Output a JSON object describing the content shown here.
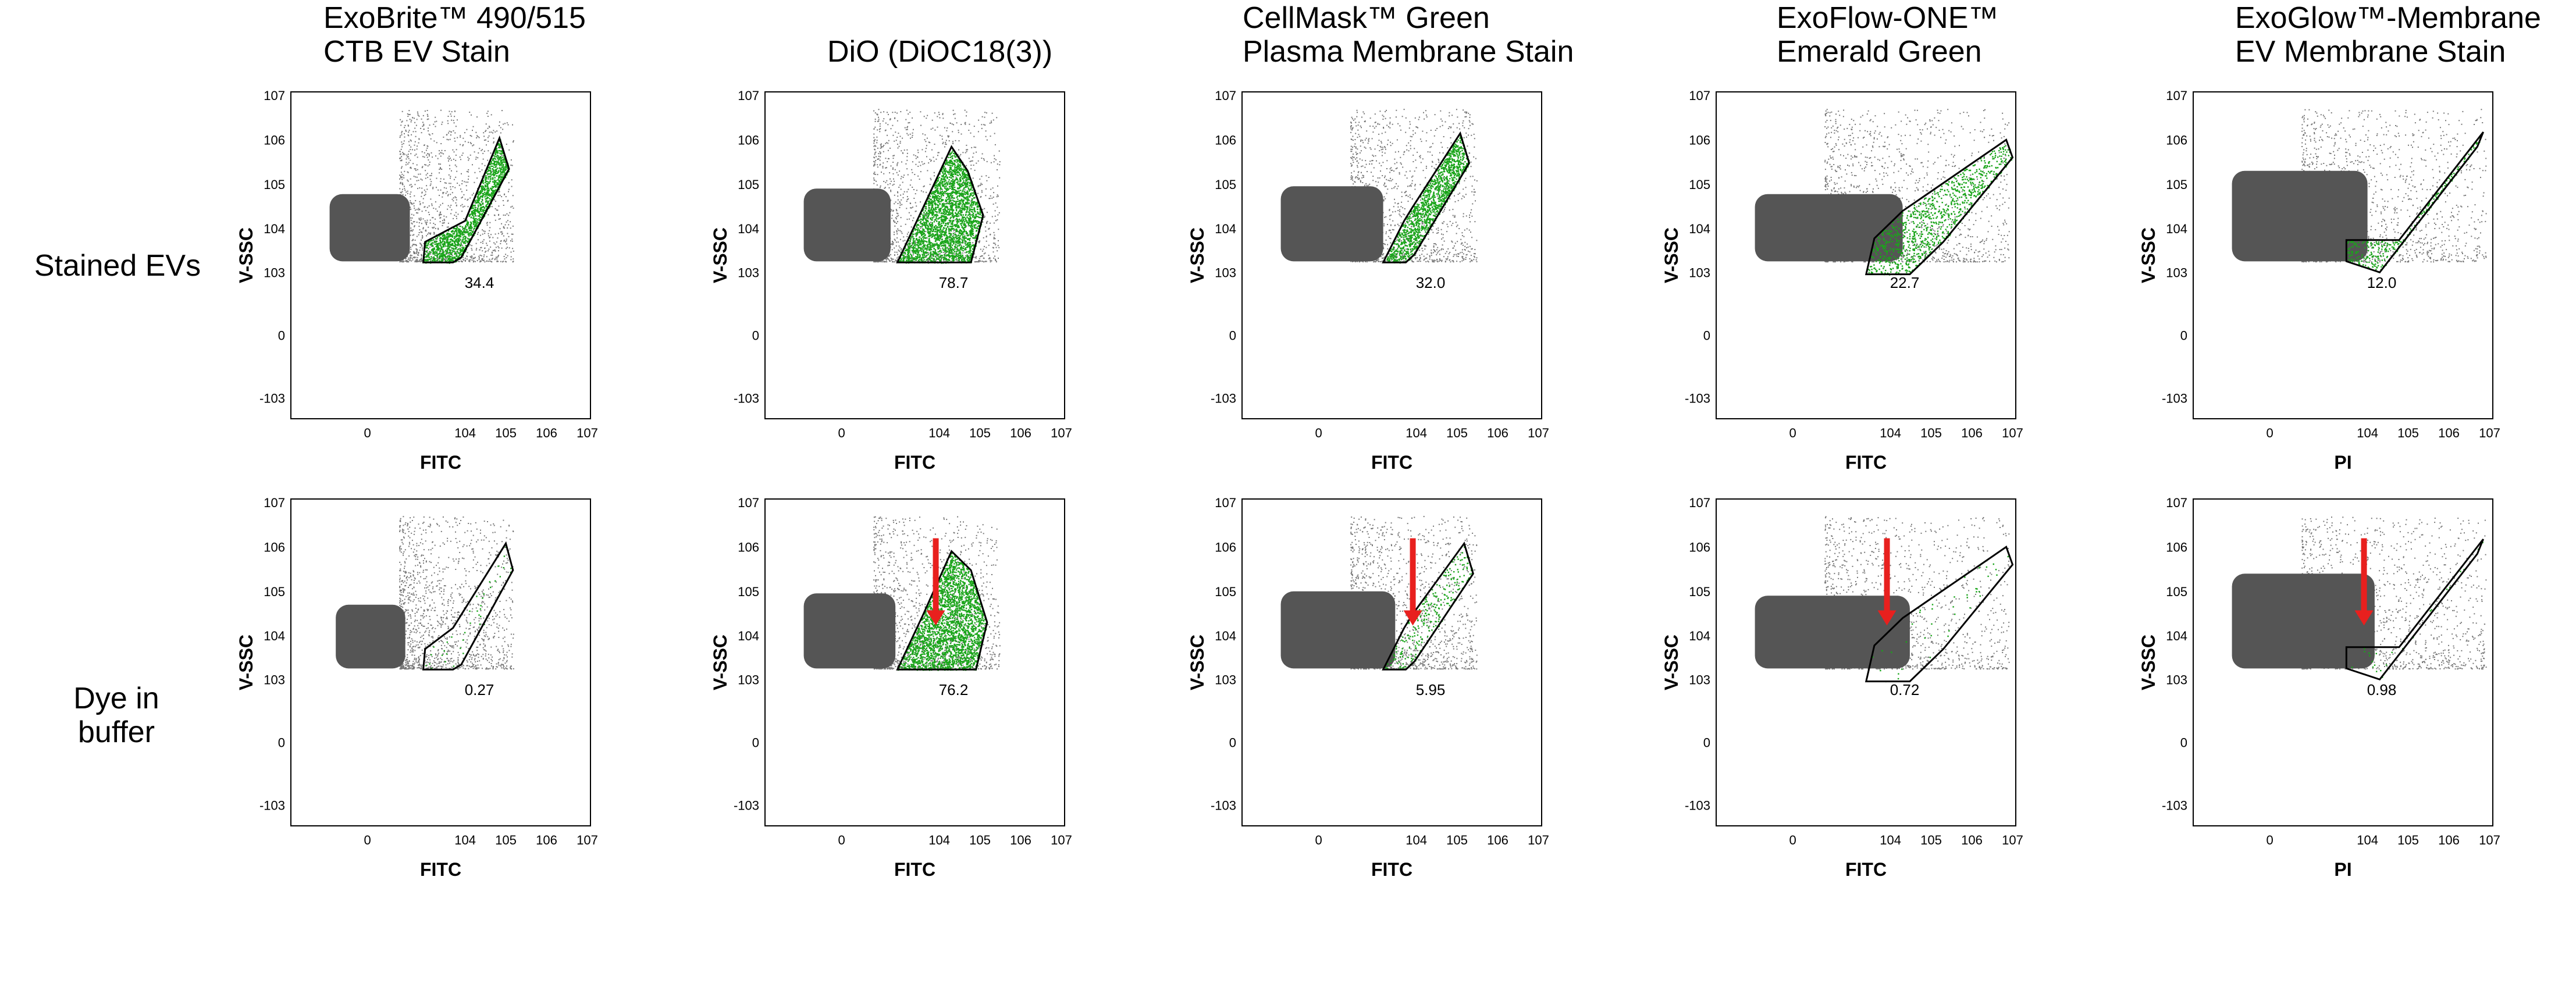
{
  "figure": {
    "row_labels": [
      "Stained EVs",
      "Dye in\nbuffer"
    ],
    "column_titles": [
      "ExoBrite™ 490/515\nCTB EV Stain",
      "DiO (DiOC18(3))",
      "CellMask™ Green\nPlasma Membrane Stain",
      "ExoFlow-ONE™\nEmerald Green",
      "ExoGlow™-Membrane\nEV Membrane Stain"
    ]
  },
  "colors": {
    "population": "#555555",
    "gated": "#1aa51a",
    "gate_outline": "#000000",
    "arrow": "#e8201e",
    "frame": "#000000"
  },
  "chart_data": [
    {
      "type": "scatter",
      "row": "Stained EVs",
      "column": "ExoBrite™ 490/515 CTB EV Stain",
      "xlabel": "FITC",
      "ylabel": "V-SSC",
      "x_scale": "biexponential",
      "y_scale": "biexponential",
      "x_ticks": [
        "0",
        "10^4",
        "10^5",
        "10^6",
        "10^7"
      ],
      "y_ticks": [
        "10^7",
        "10^6",
        "10^5",
        "10^4",
        "10^3",
        "0",
        "-10^3"
      ],
      "gate_percent": "34.4",
      "arrow": false,
      "population": {
        "x_range": [
          -300,
          400
        ],
        "y_range": [
          1800,
          60000
        ],
        "spread_x": [
          200,
          150000
        ],
        "spread_y": [
          1800,
          5000000
        ]
      },
      "gate_polygon_data": [
        [
          900,
          1700
        ],
        [
          5000,
          1700
        ],
        [
          8000,
          2200
        ],
        [
          120000,
          220000
        ],
        [
          70000,
          1100000
        ],
        [
          10000,
          15000
        ],
        [
          1000,
          5000
        ]
      ]
    },
    {
      "type": "scatter",
      "row": "Stained EVs",
      "column": "DiO (DiOC18(3))",
      "xlabel": "FITC",
      "ylabel": "V-SSC",
      "x_scale": "biexponential",
      "y_scale": "biexponential",
      "x_ticks": [
        "0",
        "10^4",
        "10^5",
        "10^6",
        "10^7"
      ],
      "y_ticks": [
        "10^7",
        "10^6",
        "10^5",
        "10^4",
        "10^3",
        "0",
        "-10^3"
      ],
      "gate_percent": "78.7",
      "arrow": false,
      "population": {
        "x_range": [
          -300,
          600
        ],
        "y_range": [
          1800,
          80000
        ],
        "spread_x": [
          200,
          300000
        ],
        "spread_y": [
          1800,
          5000000
        ]
      },
      "gate_polygon_data": [
        [
          900,
          1700
        ],
        [
          60000,
          1700
        ],
        [
          120000,
          20000
        ],
        [
          50000,
          200000
        ],
        [
          20000,
          700000
        ],
        [
          4000,
          30000
        ]
      ]
    },
    {
      "type": "scatter",
      "row": "Stained EVs",
      "column": "CellMask™ Green Plasma Membrane Stain",
      "xlabel": "FITC",
      "ylabel": "V-SSC",
      "x_scale": "biexponential",
      "y_scale": "biexponential",
      "x_ticks": [
        "0",
        "10^4",
        "10^5",
        "10^6",
        "10^7"
      ],
      "y_ticks": [
        "10^7",
        "10^6",
        "10^5",
        "10^4",
        "10^3",
        "0",
        "-10^3"
      ],
      "gate_percent": "32.0",
      "arrow": false,
      "population": {
        "x_range": [
          -300,
          1500
        ],
        "y_range": [
          1800,
          90000
        ],
        "spread_x": [
          200,
          300000
        ],
        "spread_y": [
          1800,
          5000000
        ]
      },
      "gate_polygon_data": [
        [
          1500,
          1700
        ],
        [
          5500,
          1700
        ],
        [
          9000,
          2600
        ],
        [
          200000,
          300000
        ],
        [
          120000,
          1400000
        ],
        [
          8000,
          30000
        ],
        [
          5000,
          15000
        ]
      ]
    },
    {
      "type": "scatter",
      "row": "Stained EVs",
      "column": "ExoFlow-ONE™ Emerald Green",
      "xlabel": "FITC",
      "ylabel": "V-SSC",
      "x_scale": "biexponential",
      "y_scale": "biexponential",
      "x_ticks": [
        "0",
        "10^4",
        "10^5",
        "10^6",
        "10^7"
      ],
      "y_ticks": [
        "10^7",
        "10^6",
        "10^5",
        "10^4",
        "10^3",
        "0",
        "-10^3"
      ],
      "gate_percent": "22.7",
      "arrow": false,
      "population": {
        "x_range": [
          -300,
          20000
        ],
        "y_range": [
          1800,
          60000
        ],
        "spread_x": [
          200,
          8000000
        ],
        "spread_y": [
          1800,
          5000000
        ]
      },
      "gate_polygon_data": [
        [
          2500,
          900
        ],
        [
          30000,
          900
        ],
        [
          200000,
          5000
        ],
        [
          10000000,
          400000
        ],
        [
          7000000,
          1000000
        ],
        [
          20000,
          25000
        ],
        [
          4000,
          6000
        ]
      ]
    },
    {
      "type": "scatter",
      "row": "Stained EVs",
      "column": "ExoGlow™-Membrane EV Membrane Stain",
      "xlabel": "PI",
      "ylabel": "V-SSC",
      "x_scale": "biexponential",
      "y_scale": "biexponential",
      "x_ticks": [
        "0",
        "10^4",
        "10^5",
        "10^6",
        "10^7"
      ],
      "y_ticks": [
        "10^7",
        "10^6",
        "10^5",
        "10^4",
        "10^3",
        "0",
        "-10^3"
      ],
      "gate_percent": "12.0",
      "arrow": false,
      "population": {
        "x_range": [
          -300,
          10000
        ],
        "y_range": [
          1800,
          200000
        ],
        "spread_x": [
          200,
          8000000
        ],
        "spread_y": [
          1800,
          5000000
        ]
      },
      "gate_polygon_data": [
        [
          3000,
          1800
        ],
        [
          3000,
          5500
        ],
        [
          60000,
          5500
        ],
        [
          7000000,
          1500000
        ],
        [
          5000000,
          700000
        ],
        [
          20000,
          1000
        ]
      ]
    },
    {
      "type": "scatter",
      "row": "Dye in buffer",
      "column": "ExoBrite™ 490/515 CTB EV Stain",
      "xlabel": "FITC",
      "ylabel": "V-SSC",
      "x_scale": "biexponential",
      "y_scale": "biexponential",
      "x_ticks": [
        "0",
        "10^4",
        "10^5",
        "10^6",
        "10^7"
      ],
      "y_ticks": [
        "10^7",
        "10^6",
        "10^5",
        "10^4",
        "10^3",
        "0",
        "-10^3"
      ],
      "gate_percent": "0.27",
      "arrow": false,
      "population": {
        "x_range": [
          -200,
          300
        ],
        "y_range": [
          1800,
          50000
        ],
        "spread_x": [
          200,
          150000
        ],
        "spread_y": [
          1800,
          5000000
        ]
      },
      "gate_polygon_data": [
        [
          900,
          1700
        ],
        [
          5000,
          1700
        ],
        [
          8000,
          2200
        ],
        [
          150000,
          300000
        ],
        [
          100000,
          1200000
        ],
        [
          5000,
          15000
        ],
        [
          1000,
          5000
        ]
      ]
    },
    {
      "type": "scatter",
      "row": "Dye in buffer",
      "column": "DiO (DiOC18(3))",
      "xlabel": "FITC",
      "ylabel": "V-SSC",
      "x_scale": "biexponential",
      "y_scale": "biexponential",
      "x_ticks": [
        "0",
        "10^4",
        "10^5",
        "10^6",
        "10^7"
      ],
      "y_ticks": [
        "10^7",
        "10^6",
        "10^5",
        "10^4",
        "10^3",
        "0",
        "-10^3"
      ],
      "gate_percent": "76.2",
      "arrow": true,
      "population": {
        "x_range": [
          -300,
          800
        ],
        "y_range": [
          1800,
          90000
        ],
        "spread_x": [
          200,
          300000
        ],
        "spread_y": [
          1800,
          5000000
        ]
      },
      "gate_polygon_data": [
        [
          900,
          1700
        ],
        [
          80000,
          1700
        ],
        [
          150000,
          20000
        ],
        [
          60000,
          300000
        ],
        [
          20000,
          800000
        ],
        [
          4000,
          30000
        ]
      ]
    },
    {
      "type": "scatter",
      "row": "Dye in buffer",
      "column": "CellMask™ Green Plasma Membrane Stain",
      "xlabel": "FITC",
      "ylabel": "V-SSC",
      "x_scale": "biexponential",
      "y_scale": "biexponential",
      "x_ticks": [
        "0",
        "10^4",
        "10^5",
        "10^6",
        "10^7"
      ],
      "y_ticks": [
        "10^7",
        "10^6",
        "10^5",
        "10^4",
        "10^3",
        "0",
        "-10^3"
      ],
      "gate_percent": "5.95",
      "arrow": true,
      "population": {
        "x_range": [
          -300,
          3000
        ],
        "y_range": [
          1800,
          100000
        ],
        "spread_x": [
          200,
          300000
        ],
        "spread_y": [
          1800,
          5000000
        ]
      },
      "gate_polygon_data": [
        [
          1500,
          1700
        ],
        [
          5500,
          1700
        ],
        [
          9000,
          2600
        ],
        [
          250000,
          250000
        ],
        [
          150000,
          1200000
        ],
        [
          8000,
          30000
        ],
        [
          5000,
          15000
        ]
      ]
    },
    {
      "type": "scatter",
      "row": "Dye in buffer",
      "column": "ExoFlow-ONE™ Emerald Green",
      "xlabel": "FITC",
      "ylabel": "V-SSC",
      "x_scale": "biexponential",
      "y_scale": "biexponential",
      "x_ticks": [
        "0",
        "10^4",
        "10^5",
        "10^6",
        "10^7"
      ],
      "y_ticks": [
        "10^7",
        "10^6",
        "10^5",
        "10^4",
        "10^3",
        "0",
        "-10^3"
      ],
      "gate_percent": "0.72",
      "arrow": true,
      "population": {
        "x_range": [
          -300,
          30000
        ],
        "y_range": [
          1800,
          80000
        ],
        "spread_x": [
          200,
          8000000
        ],
        "spread_y": [
          1800,
          5000000
        ]
      },
      "gate_polygon_data": [
        [
          2500,
          900
        ],
        [
          30000,
          900
        ],
        [
          200000,
          5000
        ],
        [
          10000000,
          400000
        ],
        [
          7000000,
          1000000
        ],
        [
          20000,
          25000
        ],
        [
          4000,
          6000
        ]
      ]
    },
    {
      "type": "scatter",
      "row": "Dye in buffer",
      "column": "ExoGlow™-Membrane EV Membrane Stain",
      "xlabel": "PI",
      "ylabel": "V-SSC",
      "x_scale": "biexponential",
      "y_scale": "biexponential",
      "x_ticks": [
        "0",
        "10^4",
        "10^5",
        "10^6",
        "10^7"
      ],
      "y_ticks": [
        "10^7",
        "10^6",
        "10^5",
        "10^4",
        "10^3",
        "0",
        "-10^3"
      ],
      "gate_percent": "0.98",
      "arrow": true,
      "population": {
        "x_range": [
          -300,
          15000
        ],
        "y_range": [
          1800,
          250000
        ],
        "spread_x": [
          200,
          8000000
        ],
        "spread_y": [
          1800,
          5000000
        ]
      },
      "gate_polygon_data": [
        [
          3000,
          1800
        ],
        [
          3000,
          5500
        ],
        [
          60000,
          5500
        ],
        [
          7000000,
          1500000
        ],
        [
          5000000,
          700000
        ],
        [
          20000,
          1000
        ]
      ]
    }
  ]
}
